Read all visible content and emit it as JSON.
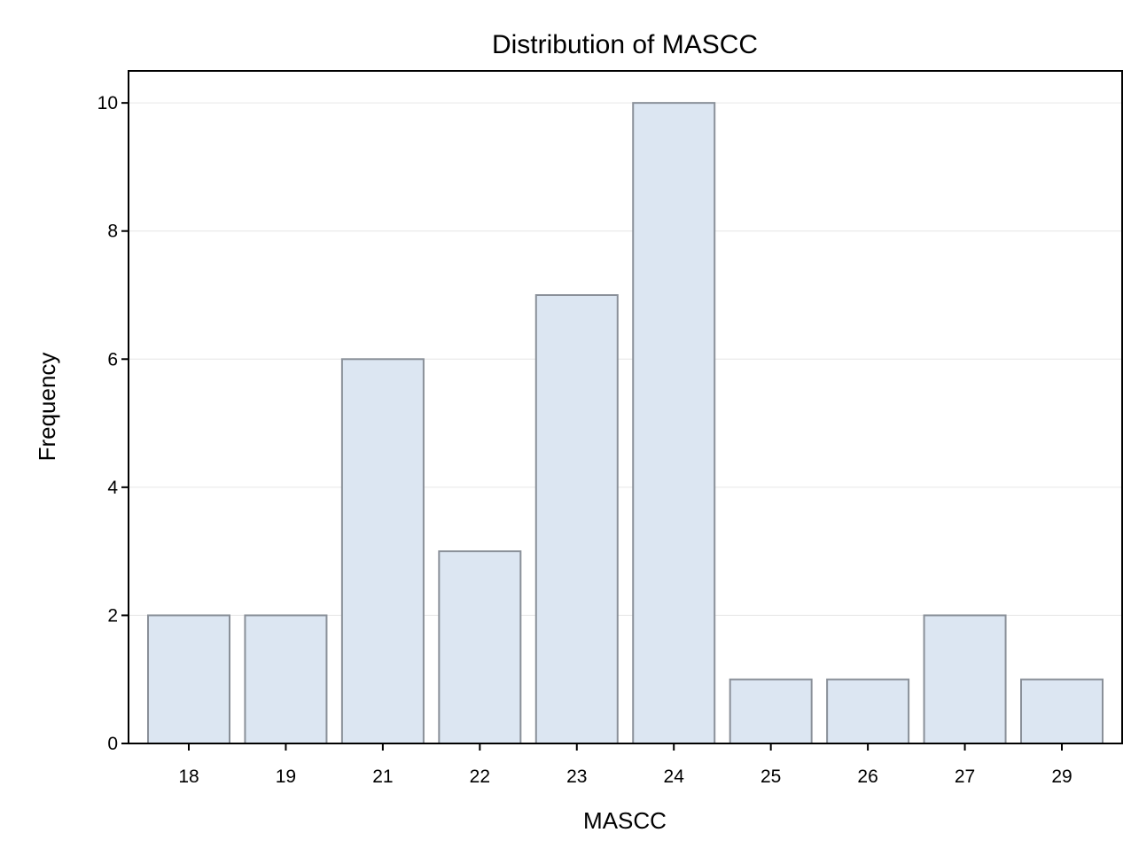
{
  "chart_data": {
    "type": "bar",
    "title": "Distribution of MASCC",
    "xlabel": "MASCC",
    "ylabel": "Frequency",
    "categories": [
      "18",
      "19",
      "21",
      "22",
      "23",
      "24",
      "25",
      "26",
      "27",
      "29"
    ],
    "values": [
      2,
      2,
      6,
      3,
      7,
      10,
      1,
      1,
      2,
      1
    ],
    "ylim": [
      0,
      10.5
    ],
    "yticks": [
      0,
      2,
      4,
      6,
      8,
      10
    ],
    "grid": true,
    "legend": "none",
    "colors": {
      "bar_fill": "#dce6f2",
      "bar_stroke": "#8a9099",
      "grid": "#e6e6e6",
      "axis": "#000000"
    }
  }
}
